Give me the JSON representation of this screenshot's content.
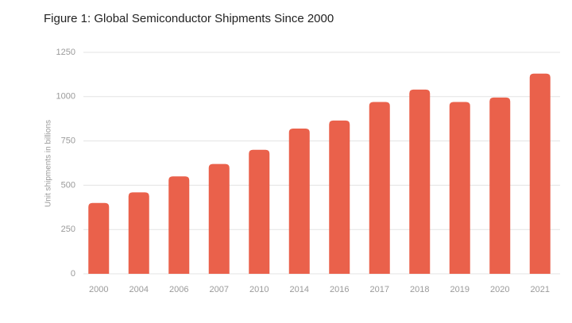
{
  "chart_data": {
    "type": "bar",
    "title": "Figure 1: Global Semiconductor Shipments Since 2000",
    "y_label": "Unit shipments in billions",
    "categories": [
      "2000",
      "2004",
      "2006",
      "2007",
      "2010",
      "2014",
      "2016",
      "2017",
      "2018",
      "2019",
      "2020",
      "2021"
    ],
    "values": [
      400,
      460,
      550,
      620,
      700,
      820,
      865,
      970,
      1040,
      970,
      995,
      1130
    ],
    "color": "#ea614b",
    "ylim": [
      0,
      1250
    ],
    "yticks": [
      0,
      250,
      500,
      750,
      1000,
      1250
    ],
    "grid": true
  }
}
